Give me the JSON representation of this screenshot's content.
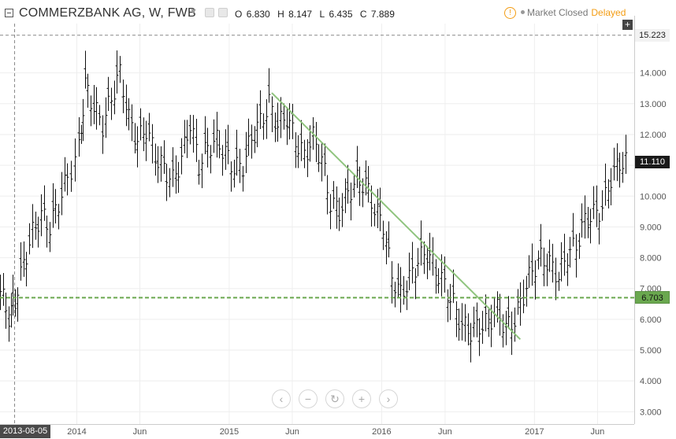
{
  "header": {
    "symbol_title": "COMMERZBANK AG, W, FWB",
    "open_label": "O",
    "open_value": "6.830",
    "high_label": "H",
    "high_value": "8.147",
    "low_label": "L",
    "low_value": "6.435",
    "close_label": "C",
    "close_value": "7.889",
    "market_status": "Market Closed",
    "delayed_label": "Delayed",
    "warning_icon": "exclamation-circle-icon"
  },
  "navigation": {
    "buttons": [
      {
        "name": "scroll-left-button",
        "glyph": "‹"
      },
      {
        "name": "zoom-out-button",
        "glyph": "−"
      },
      {
        "name": "reset-button",
        "glyph": "↻"
      },
      {
        "name": "zoom-in-button",
        "glyph": "+"
      },
      {
        "name": "scroll-right-button",
        "glyph": "›"
      }
    ]
  },
  "crosshair_date": "2013-08-05",
  "colors": {
    "trendline": "#8fc47e",
    "support_line": "#6aa84f",
    "bars": "#111111",
    "grid": "#eeeeee",
    "axis_text": "#555555",
    "delayed": "#f39c12"
  },
  "chart_data": {
    "type": "ohlc",
    "title": "COMMERZBANK AG, W, FWB",
    "ylim": [
      2.6,
      15.6
    ],
    "y_ticks": [
      "3.000",
      "4.000",
      "5.000",
      "6.000",
      "7.000",
      "8.000",
      "9.000",
      "10.000",
      "11.000",
      "12.000",
      "13.000",
      "14.000"
    ],
    "x_range": [
      "2013-07-01",
      "2017-08-28"
    ],
    "x_ticks": [
      {
        "date": "2014-01-01",
        "label": "2014"
      },
      {
        "date": "2014-06-01",
        "label": "Jun"
      },
      {
        "date": "2015-01-01",
        "label": "2015"
      },
      {
        "date": "2015-06-01",
        "label": "Jun"
      },
      {
        "date": "2016-01-01",
        "label": "2016"
      },
      {
        "date": "2016-06-01",
        "label": "Jun"
      },
      {
        "date": "2017-01-01",
        "label": "2017"
      },
      {
        "date": "2017-06-01",
        "label": "Jun"
      }
    ],
    "price_labels": [
      {
        "value": 15.223,
        "label": "15.223",
        "style": "plain"
      },
      {
        "value": 11.11,
        "label": "11.110",
        "style": "dark"
      },
      {
        "value": 6.703,
        "label": "6.703",
        "style": "green"
      }
    ],
    "horizontal_line": {
      "value": 6.703,
      "style": "dashed"
    },
    "trendline": {
      "start": {
        "date": "2015-04-13",
        "value": 13.35
      },
      "end": {
        "date": "2016-11-28",
        "value": 5.35
      }
    },
    "series": [
      {
        "date": "2013-07-01",
        "value": 6.9
      },
      {
        "date": "2013-07-22",
        "value": 6.1
      },
      {
        "date": "2013-08-05",
        "value": 6.6
      },
      {
        "date": "2013-08-26",
        "value": 7.8
      },
      {
        "date": "2013-09-16",
        "value": 8.8
      },
      {
        "date": "2013-10-07",
        "value": 9.4
      },
      {
        "date": "2013-10-28",
        "value": 9.0
      },
      {
        "date": "2013-11-18",
        "value": 9.8
      },
      {
        "date": "2013-12-09",
        "value": 10.6
      },
      {
        "date": "2014-01-06",
        "value": 11.5
      },
      {
        "date": "2014-01-20",
        "value": 13.6
      },
      {
        "date": "2014-02-10",
        "value": 12.9
      },
      {
        "date": "2014-03-03",
        "value": 12.3
      },
      {
        "date": "2014-03-24",
        "value": 13.2
      },
      {
        "date": "2014-04-14",
        "value": 14.0
      },
      {
        "date": "2014-05-05",
        "value": 12.5
      },
      {
        "date": "2014-05-26",
        "value": 11.8
      },
      {
        "date": "2014-06-16",
        "value": 12.2
      },
      {
        "date": "2014-07-07",
        "value": 11.3
      },
      {
        "date": "2014-07-28",
        "value": 10.9
      },
      {
        "date": "2014-08-18",
        "value": 10.5
      },
      {
        "date": "2014-09-08",
        "value": 11.2
      },
      {
        "date": "2014-09-29",
        "value": 12.4
      },
      {
        "date": "2014-10-20",
        "value": 11.0
      },
      {
        "date": "2014-11-10",
        "value": 11.6
      },
      {
        "date": "2014-12-01",
        "value": 11.8
      },
      {
        "date": "2014-12-22",
        "value": 11.4
      },
      {
        "date": "2015-01-12",
        "value": 10.9
      },
      {
        "date": "2015-02-02",
        "value": 11.0
      },
      {
        "date": "2015-02-23",
        "value": 11.9
      },
      {
        "date": "2015-03-16",
        "value": 12.4
      },
      {
        "date": "2015-04-06",
        "value": 13.0
      },
      {
        "date": "2015-04-27",
        "value": 12.3
      },
      {
        "date": "2015-05-18",
        "value": 12.6
      },
      {
        "date": "2015-06-08",
        "value": 11.8
      },
      {
        "date": "2015-06-29",
        "value": 11.3
      },
      {
        "date": "2015-07-20",
        "value": 11.9
      },
      {
        "date": "2015-08-10",
        "value": 11.2
      },
      {
        "date": "2015-08-31",
        "value": 9.8
      },
      {
        "date": "2015-09-21",
        "value": 9.5
      },
      {
        "date": "2015-10-12",
        "value": 10.1
      },
      {
        "date": "2015-11-02",
        "value": 10.5
      },
      {
        "date": "2015-11-23",
        "value": 10.4
      },
      {
        "date": "2015-12-14",
        "value": 9.6
      },
      {
        "date": "2016-01-04",
        "value": 9.1
      },
      {
        "date": "2016-01-25",
        "value": 7.4
      },
      {
        "date": "2016-02-15",
        "value": 6.8
      },
      {
        "date": "2016-03-07",
        "value": 7.3
      },
      {
        "date": "2016-03-28",
        "value": 7.9
      },
      {
        "date": "2016-04-18",
        "value": 8.2
      },
      {
        "date": "2016-05-09",
        "value": 7.6
      },
      {
        "date": "2016-05-30",
        "value": 7.1
      },
      {
        "date": "2016-06-20",
        "value": 6.5
      },
      {
        "date": "2016-07-11",
        "value": 5.8
      },
      {
        "date": "2016-08-01",
        "value": 5.6
      },
      {
        "date": "2016-08-22",
        "value": 5.8
      },
      {
        "date": "2016-09-12",
        "value": 5.9
      },
      {
        "date": "2016-10-03",
        "value": 6.3
      },
      {
        "date": "2016-10-24",
        "value": 5.7
      },
      {
        "date": "2016-11-14",
        "value": 6.0
      },
      {
        "date": "2016-12-05",
        "value": 6.8
      },
      {
        "date": "2016-12-26",
        "value": 7.6
      },
      {
        "date": "2017-01-16",
        "value": 8.0
      },
      {
        "date": "2017-02-06",
        "value": 7.8
      },
      {
        "date": "2017-02-27",
        "value": 7.4
      },
      {
        "date": "2017-03-20",
        "value": 8.1
      },
      {
        "date": "2017-04-10",
        "value": 8.4
      },
      {
        "date": "2017-05-01",
        "value": 9.2
      },
      {
        "date": "2017-05-22",
        "value": 9.4
      },
      {
        "date": "2017-06-12",
        "value": 9.6
      },
      {
        "date": "2017-07-03",
        "value": 10.6
      },
      {
        "date": "2017-07-24",
        "value": 11.1
      }
    ]
  }
}
